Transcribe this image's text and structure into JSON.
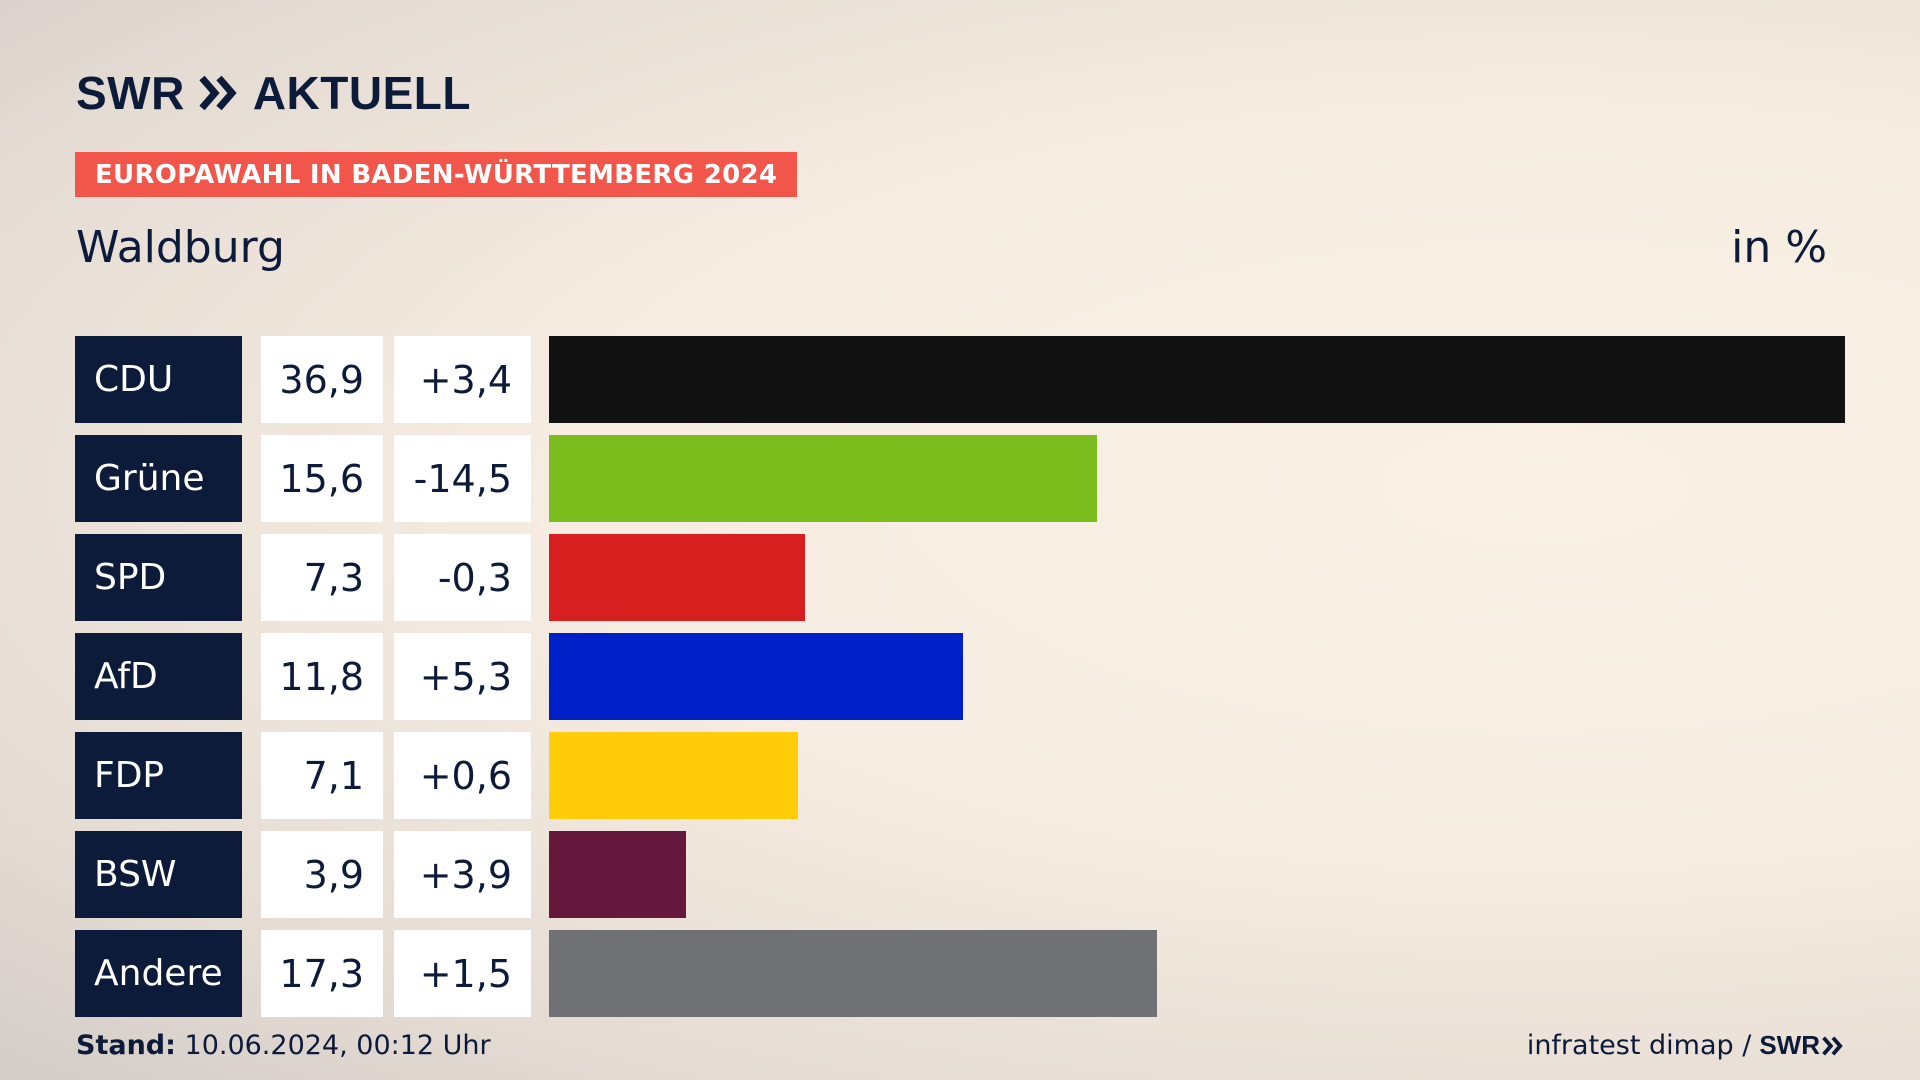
{
  "brand": {
    "swr": "SWR",
    "aktuell": "AKTUELL",
    "footer_swr": "SWR"
  },
  "header": {
    "banner": "EUROPAWAHL IN BADEN-WÜRTTEMBERG 2024",
    "place": "Waldburg",
    "unit": "in %"
  },
  "footer": {
    "stand_label": "Stand:",
    "stand_value": "10.06.2024, 00:12 Uhr",
    "source": "infratest dimap /"
  },
  "chart_data": {
    "type": "bar",
    "orientation": "horizontal",
    "categories": [
      "CDU",
      "Grüne",
      "SPD",
      "AfD",
      "FDP",
      "BSW",
      "Andere"
    ],
    "values": [
      36.9,
      15.6,
      7.3,
      11.8,
      7.1,
      3.9,
      17.3
    ],
    "value_labels": [
      "36,9",
      "15,6",
      "7,3",
      "11,8",
      "7,1",
      "3,9",
      "17,3"
    ],
    "diff_labels": [
      "+3,4",
      "-14,5",
      "-0,3",
      "+5,3",
      "+0,6",
      "+3,9",
      "+1,5"
    ],
    "colors": [
      "#121212",
      "#7cbd1e",
      "#d81f1f",
      "#0020c8",
      "#ffcd0a",
      "#66183c",
      "#707174"
    ],
    "xlim": [
      0,
      36.9
    ],
    "grid": false,
    "legend": "none"
  }
}
